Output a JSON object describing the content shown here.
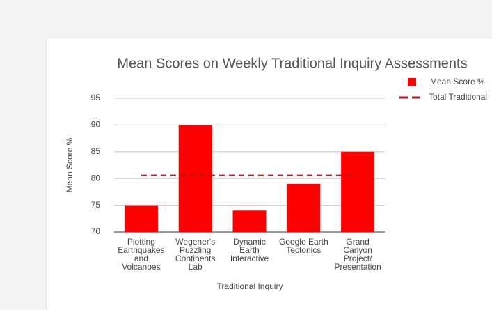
{
  "chart_data": {
    "type": "bar",
    "title": "Mean Scores on Weekly Traditional Inquiry Assessments",
    "x_label": "Traditional Inquiry",
    "y_label": "Mean Score %",
    "categories": [
      "Plotting Earthquakes and Volcanoes",
      "Wegener's Puzzling Continents Lab",
      "Dynamic Earth Interactive",
      "Google Earth Tectonics",
      "Grand Canyon Project/ Presentation"
    ],
    "series": [
      {
        "name": "Mean Score %",
        "type": "bar",
        "color": "#ff0000",
        "values": [
          75,
          90,
          74,
          79,
          85
        ]
      },
      {
        "name": "Total Traditional",
        "type": "line",
        "color": "#a61c1c",
        "dashed": true,
        "values": [
          80.6,
          80.6,
          80.6,
          80.6,
          80.6
        ]
      }
    ],
    "ylim": [
      70,
      95
    ],
    "yticks": [
      70,
      75,
      80,
      85,
      90,
      95
    ],
    "grid": true,
    "legend": "right"
  }
}
